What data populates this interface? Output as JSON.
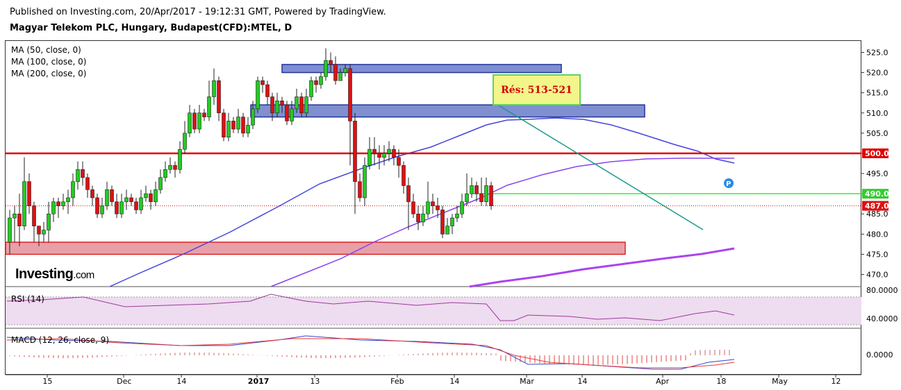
{
  "header": {
    "published": "Published on Investing.com, 20/Apr/2017 - 19:12:31 GMT, Powered by TradingView.",
    "instrument": "Magyar Telekom PLC, Hungary, Budapest(CFD):MTEL, D"
  },
  "legend": [
    "MA (50, close, 0)",
    "MA (100, close, 0)",
    "MA (200, close, 0)"
  ],
  "logo": {
    "name": "Investing",
    "suffix": ".com"
  },
  "annotation": {
    "resistance_label": "Rés: 513-521"
  },
  "price_labels": {
    "red_line": "500.0",
    "green_line": "490.0",
    "last": "487.0"
  },
  "indicators": {
    "rsi": "RSI (14)",
    "macd": "MACD (12, 26, close, 9)"
  },
  "colors": {
    "up": "#22cc22",
    "down": "#dd1111",
    "ma50": "#4444dd",
    "ma100": "#8844ee",
    "ma200": "#aa44ee",
    "resistance": "#dd0000",
    "support_green": "#33ee33",
    "zone_blue": "#7f8fd0",
    "zone_red": "#e8a0a8",
    "trend": "#1a9a8a"
  },
  "chart_data": {
    "type": "candlestick",
    "title": "Magyar Telekom PLC, Hungary, Budapest(CFD):MTEL, D",
    "ylim": [
      467,
      528
    ],
    "y_ticks": [
      "525.0",
      "520.0",
      "515.0",
      "510.0",
      "505.0",
      "500.0",
      "495.0",
      "490.0",
      "485.0",
      "480.0",
      "475.0",
      "470.0"
    ],
    "x_ticks": [
      "15",
      "Dec",
      "14",
      "2017",
      "13",
      "Feb",
      "14",
      "Mar",
      "14",
      "Apr",
      "18",
      "May",
      "12"
    ],
    "levels": {
      "resistance": 500,
      "support": 490,
      "last": 487
    },
    "zones": [
      {
        "from": 520,
        "to": 522,
        "kind": "resistance"
      },
      {
        "from": 509,
        "to": 512,
        "kind": "resistance"
      },
      {
        "from": 475,
        "to": 478,
        "kind": "support"
      }
    ],
    "candles": [
      [
        478,
        484,
        486,
        475
      ],
      [
        484,
        485,
        487,
        478
      ],
      [
        485,
        482,
        490,
        477
      ],
      [
        482,
        493,
        499,
        481
      ],
      [
        493,
        487,
        495,
        485
      ],
      [
        487,
        482,
        488,
        478
      ],
      [
        482,
        480,
        482,
        477
      ],
      [
        480,
        481,
        483,
        478
      ],
      [
        481,
        485,
        488,
        478
      ],
      [
        485,
        488,
        489,
        483
      ],
      [
        488,
        487,
        489,
        484
      ],
      [
        487,
        488,
        490,
        486
      ],
      [
        488,
        489,
        491,
        485
      ],
      [
        489,
        493,
        495,
        487
      ],
      [
        493,
        496,
        498,
        491
      ],
      [
        496,
        494,
        498,
        492
      ],
      [
        494,
        491,
        495,
        489
      ],
      [
        491,
        489,
        492,
        487
      ],
      [
        489,
        485,
        490,
        484
      ],
      [
        485,
        487,
        489,
        484
      ],
      [
        487,
        491,
        493,
        486
      ],
      [
        491,
        488,
        492,
        487
      ],
      [
        488,
        485,
        490,
        484
      ],
      [
        485,
        488,
        490,
        484
      ],
      [
        488,
        489,
        491,
        486
      ],
      [
        489,
        488,
        490,
        487
      ],
      [
        488,
        486,
        489,
        485
      ],
      [
        486,
        489,
        491,
        485
      ],
      [
        489,
        490,
        492,
        488
      ],
      [
        490,
        488,
        491,
        486
      ],
      [
        488,
        491,
        493,
        487
      ],
      [
        491,
        494,
        496,
        490
      ],
      [
        494,
        496,
        498,
        493
      ],
      [
        496,
        497,
        499,
        495
      ],
      [
        497,
        496,
        498,
        494
      ],
      [
        496,
        501,
        503,
        495
      ],
      [
        501,
        505,
        508,
        500
      ],
      [
        505,
        510,
        512,
        504
      ],
      [
        510,
        506,
        511,
        505
      ],
      [
        506,
        510,
        512,
        505
      ],
      [
        510,
        509,
        511,
        508
      ],
      [
        509,
        514,
        518,
        508
      ],
      [
        514,
        518,
        521,
        512
      ],
      [
        518,
        510,
        519,
        508
      ],
      [
        510,
        504,
        511,
        503
      ],
      [
        504,
        508,
        510,
        503
      ],
      [
        508,
        506,
        509,
        505
      ],
      [
        506,
        509,
        511,
        505
      ],
      [
        509,
        505,
        510,
        504
      ],
      [
        505,
        507,
        509,
        504
      ],
      [
        507,
        511,
        513,
        506
      ],
      [
        511,
        518,
        519,
        510
      ],
      [
        518,
        517,
        519,
        515
      ],
      [
        517,
        514,
        518,
        512
      ],
      [
        514,
        510,
        515,
        508
      ],
      [
        510,
        513,
        515,
        509
      ],
      [
        513,
        512,
        514,
        510
      ],
      [
        512,
        508,
        513,
        507
      ],
      [
        508,
        511,
        513,
        507
      ],
      [
        511,
        514,
        516,
        510
      ],
      [
        514,
        510,
        515,
        509
      ],
      [
        510,
        514,
        516,
        509
      ],
      [
        514,
        518,
        519,
        513
      ],
      [
        518,
        517,
        519,
        515
      ],
      [
        517,
        519,
        520,
        516
      ],
      [
        519,
        523,
        526,
        518
      ],
      [
        523,
        522,
        525,
        520
      ],
      [
        522,
        518,
        524,
        517
      ],
      [
        518,
        520,
        521,
        518
      ],
      [
        520,
        521,
        522,
        519
      ],
      [
        521,
        508,
        522,
        497
      ],
      [
        508,
        493,
        510,
        485
      ],
      [
        493,
        489,
        495,
        488
      ],
      [
        489,
        497,
        499,
        487
      ],
      [
        497,
        501,
        504,
        496
      ],
      [
        501,
        500,
        504,
        497
      ],
      [
        500,
        499,
        502,
        496
      ],
      [
        499,
        500,
        502,
        497
      ],
      [
        500,
        501,
        503,
        498
      ],
      [
        501,
        499,
        502,
        497
      ],
      [
        499,
        497,
        501,
        494
      ],
      [
        497,
        492,
        498,
        490
      ],
      [
        492,
        488,
        494,
        481
      ],
      [
        488,
        485,
        490,
        484
      ],
      [
        485,
        483,
        487,
        481
      ],
      [
        483,
        485,
        487,
        482
      ],
      [
        485,
        488,
        493,
        484
      ],
      [
        488,
        487,
        490,
        485
      ],
      [
        487,
        486,
        489,
        484
      ],
      [
        486,
        480,
        487,
        479
      ],
      [
        480,
        482,
        484,
        480
      ],
      [
        482,
        484,
        485,
        480
      ],
      [
        484,
        485,
        487,
        483
      ],
      [
        485,
        488,
        490,
        484
      ],
      [
        488,
        490,
        495,
        487
      ],
      [
        490,
        492,
        494,
        489
      ],
      [
        492,
        490,
        493,
        488
      ],
      [
        490,
        488,
        494,
        487
      ],
      [
        488,
        492,
        494,
        487
      ],
      [
        492,
        487,
        493,
        486
      ]
    ]
  }
}
